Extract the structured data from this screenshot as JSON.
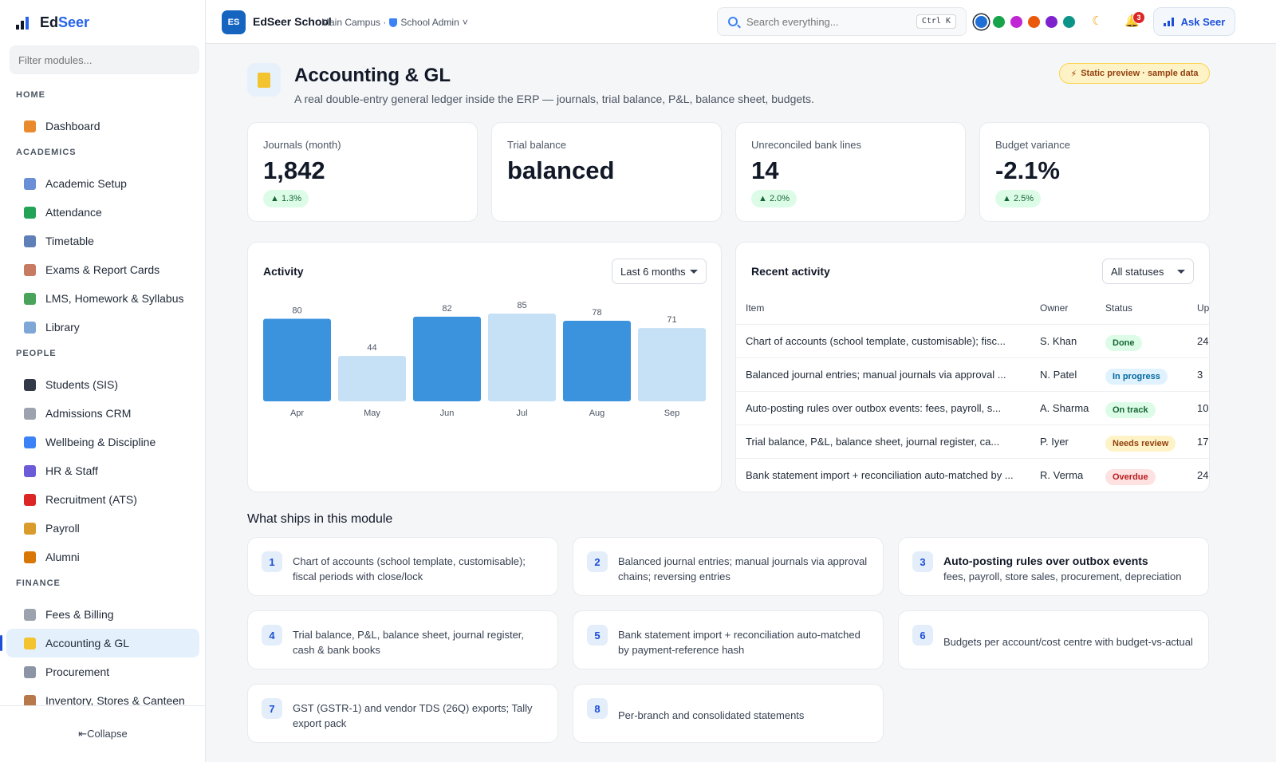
{
  "sidebar": {
    "brand_a": "Ed",
    "brand_b": "Seer",
    "filter_placeholder": "Filter modules...",
    "sections": [
      {
        "label": "HOME",
        "items": [
          {
            "label": "Dashboard",
            "color": "#e98a2c"
          }
        ]
      },
      {
        "label": "ACADEMICS",
        "items": [
          {
            "label": "Academic Setup",
            "color": "#6b8fd6"
          },
          {
            "label": "Attendance",
            "color": "#22a355"
          },
          {
            "label": "Timetable",
            "color": "#5f7fb8"
          },
          {
            "label": "Exams & Report Cards",
            "color": "#c77b63"
          },
          {
            "label": "LMS, Homework & Syllabus",
            "color": "#4aa35b"
          },
          {
            "label": "Library",
            "color": "#7ea6d6"
          }
        ]
      },
      {
        "label": "PEOPLE",
        "items": [
          {
            "label": "Students (SIS)",
            "color": "#333a47"
          },
          {
            "label": "Admissions CRM",
            "color": "#9ca3af"
          },
          {
            "label": "Wellbeing & Discipline",
            "color": "#3b82f6"
          },
          {
            "label": "HR & Staff",
            "color": "#6b5bd6"
          },
          {
            "label": "Recruitment (ATS)",
            "color": "#dc2626"
          },
          {
            "label": "Payroll",
            "color": "#d99b2b"
          },
          {
            "label": "Alumni",
            "color": "#d97706"
          }
        ]
      },
      {
        "label": "FINANCE",
        "items": [
          {
            "label": "Fees & Billing",
            "color": "#9ca3af"
          },
          {
            "label": "Accounting & GL",
            "color": "#f4c430",
            "active": true
          },
          {
            "label": "Procurement",
            "color": "#8b95a5"
          },
          {
            "label": "Inventory, Stores & Canteen",
            "color": "#b7794a"
          }
        ]
      }
    ],
    "collapse_label": "⇤Collapse"
  },
  "topbar": {
    "logo": "ES",
    "school": "EdSeer School",
    "campus": "Main Campus ·",
    "role": "School Admin",
    "role_caret": "˅",
    "search_placeholder": "Search everything...",
    "shortcut": "Ctrl K",
    "theme_colors": [
      "#1f6fd6",
      "#16a34a",
      "#c026d3",
      "#ea580c",
      "#7e22ce",
      "#0d9488"
    ],
    "moon_icon": "☾",
    "bell_icon": "🔔",
    "notification_count": "3",
    "ask_label": "Ask Seer"
  },
  "page": {
    "title": "Accounting & GL",
    "subtitle": "A real double-entry general ledger inside the ERP — journals, trial balance, P&L, balance sheet, budgets.",
    "preview_badge": "Static preview · sample data",
    "preview_icon": "⚡"
  },
  "kpis": [
    {
      "label": "Journals (month)",
      "value": "1,842",
      "delta": "▲ 1.3%"
    },
    {
      "label": "Trial balance",
      "value": "balanced",
      "delta": ""
    },
    {
      "label": "Unreconciled bank lines",
      "value": "14",
      "delta": "▲ 2.0%"
    },
    {
      "label": "Budget variance",
      "value": "-2.1%",
      "delta": "▲ 2.5%"
    }
  ],
  "activity": {
    "title": "Activity",
    "range": "Last 6 months",
    "chart_data": {
      "type": "bar",
      "categories": [
        "Apr",
        "May",
        "Jun",
        "Jul",
        "Aug",
        "Sep"
      ],
      "values": [
        80,
        44,
        82,
        85,
        78,
        71
      ],
      "highlight": [
        true,
        false,
        true,
        false,
        true,
        false
      ],
      "colors": {
        "primary": "#3b93dd",
        "muted": "#c6e0f5"
      },
      "ylim": [
        0,
        85
      ]
    }
  },
  "recent": {
    "title": "Recent activity",
    "filter": "All statuses",
    "columns": [
      "Item",
      "Owner",
      "Status",
      "Up"
    ],
    "rows": [
      {
        "item": "Chart of accounts (school template, customisable); fisc...",
        "owner": "S. Khan",
        "status": "Done",
        "up": "24",
        "bg": "#dcfce7",
        "fg": "#166534"
      },
      {
        "item": "Balanced journal entries; manual journals via approval ...",
        "owner": "N. Patel",
        "status": "In progress",
        "up": "3",
        "bg": "#e0f2fe",
        "fg": "#0369a1"
      },
      {
        "item": "Auto-posting rules over outbox events: fees, payroll, s...",
        "owner": "A. Sharma",
        "status": "On track",
        "up": "10",
        "bg": "#dcfce7",
        "fg": "#166534"
      },
      {
        "item": "Trial balance, P&L, balance sheet, journal register, ca...",
        "owner": "P. Iyer",
        "status": "Needs review",
        "up": "17",
        "bg": "#fef3c7",
        "fg": "#92400e"
      },
      {
        "item": "Bank statement import + reconciliation auto-matched by ...",
        "owner": "R. Verma",
        "status": "Overdue",
        "up": "24",
        "bg": "#fee2e2",
        "fg": "#b91c1c"
      }
    ]
  },
  "features": {
    "title": "What ships in this module",
    "items": [
      {
        "n": "1",
        "text": "Chart of accounts (school template, customisable); fiscal periods with close/lock"
      },
      {
        "n": "2",
        "text": "Balanced journal entries; manual journals via approval chains; reversing entries"
      },
      {
        "n": "3",
        "strong": "Auto-posting rules over outbox events",
        "text": "fees, payroll, store sales, procurement, depreciation"
      },
      {
        "n": "4",
        "text": "Trial balance, P&L, balance sheet, journal register, cash & bank books"
      },
      {
        "n": "5",
        "text": "Bank statement import + reconciliation auto-matched by payment-reference hash"
      },
      {
        "n": "6",
        "text": "Budgets per account/cost centre with budget-vs-actual"
      },
      {
        "n": "7",
        "text": "GST (GSTR-1) and vendor TDS (26Q) exports; Tally export pack"
      },
      {
        "n": "8",
        "text": "Per-branch and consolidated statements"
      }
    ]
  }
}
